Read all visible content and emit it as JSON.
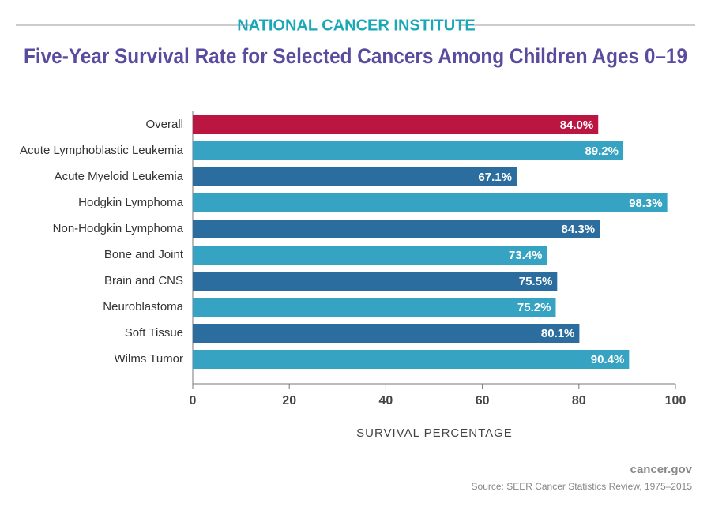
{
  "chart_data": {
    "type": "bar",
    "orientation": "horizontal",
    "supertitle": "NATIONAL CANCER INSTITUTE",
    "title": "Five-Year Survival Rate for Selected Cancers Among Children Ages 0–19",
    "categories": [
      "Overall",
      "Acute Lymphoblastic Leukemia",
      "Acute Myeloid Leukemia",
      "Hodgkin Lymphoma",
      "Non-Hodgkin Lymphoma",
      "Bone and Joint",
      "Brain and CNS",
      "Neuroblastoma",
      "Soft Tissue",
      "Wilms Tumor"
    ],
    "values": [
      84.0,
      89.2,
      67.1,
      98.3,
      84.3,
      73.4,
      75.5,
      75.2,
      80.1,
      90.4
    ],
    "value_labels": [
      "84.0%",
      "89.2%",
      "67.1%",
      "98.3%",
      "84.3%",
      "73.4%",
      "75.5%",
      "75.2%",
      "80.1%",
      "90.4%"
    ],
    "colors": [
      "#bb1541",
      "#35a3c1",
      "#2b6d9e",
      "#35a3c1",
      "#2b6d9e",
      "#35a3c1",
      "#2b6d9e",
      "#35a3c1",
      "#2b6d9e",
      "#35a3c1"
    ],
    "xlim": [
      0,
      100
    ],
    "xticks": [
      0,
      20,
      40,
      60,
      80,
      100
    ],
    "xlabel": "SURVIVAL PERCENTAGE",
    "site": "cancer.gov",
    "source": "Source:  SEER Cancer Statistics Review, 1975–2015"
  }
}
